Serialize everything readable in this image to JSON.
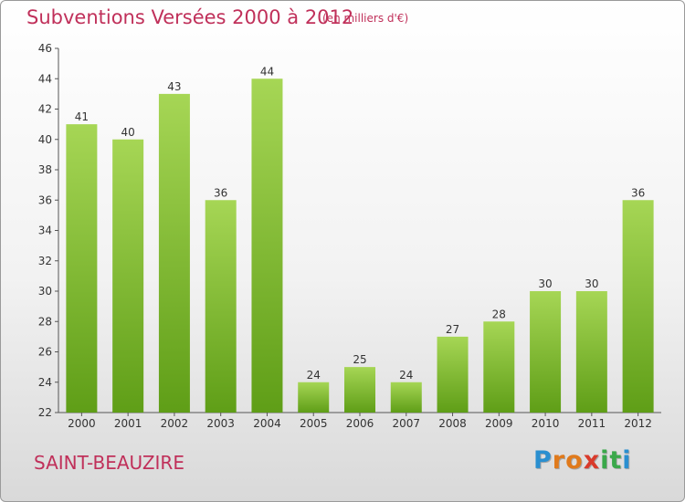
{
  "header": {
    "title": "Subventions Versées 2000 à 2012",
    "subtitle": "(en milliers d'€)"
  },
  "footer": {
    "commune": "SAINT-BEAUZIRE",
    "logo_letters": [
      "P",
      "r",
      "o",
      "x",
      "i",
      "t",
      "i"
    ],
    "logo_colors": [
      "#2a8fd0",
      "#e07a1c",
      "#e07a1c",
      "#d93a2b",
      "#3aa84a",
      "#3aa84a",
      "#2a8fd0"
    ]
  },
  "chart_data": {
    "type": "bar",
    "categories": [
      "2000",
      "2001",
      "2002",
      "2003",
      "2004",
      "2005",
      "2006",
      "2007",
      "2008",
      "2009",
      "2010",
      "2011",
      "2012"
    ],
    "values": [
      41,
      40,
      43,
      36,
      44,
      24,
      25,
      24,
      27,
      28,
      30,
      30,
      36
    ],
    "title": "Subventions Versées 2000 à 2012",
    "subtitle": "(en milliers d'€)",
    "xlabel": "",
    "ylabel": "",
    "ylim": [
      22,
      46
    ],
    "yticks": [
      22,
      24,
      26,
      28,
      30,
      32,
      34,
      36,
      38,
      40,
      42,
      44,
      46
    ],
    "grid": false,
    "legend": "none",
    "bar_color_top": "#a6d655",
    "bar_color_bottom": "#5f9e17"
  }
}
